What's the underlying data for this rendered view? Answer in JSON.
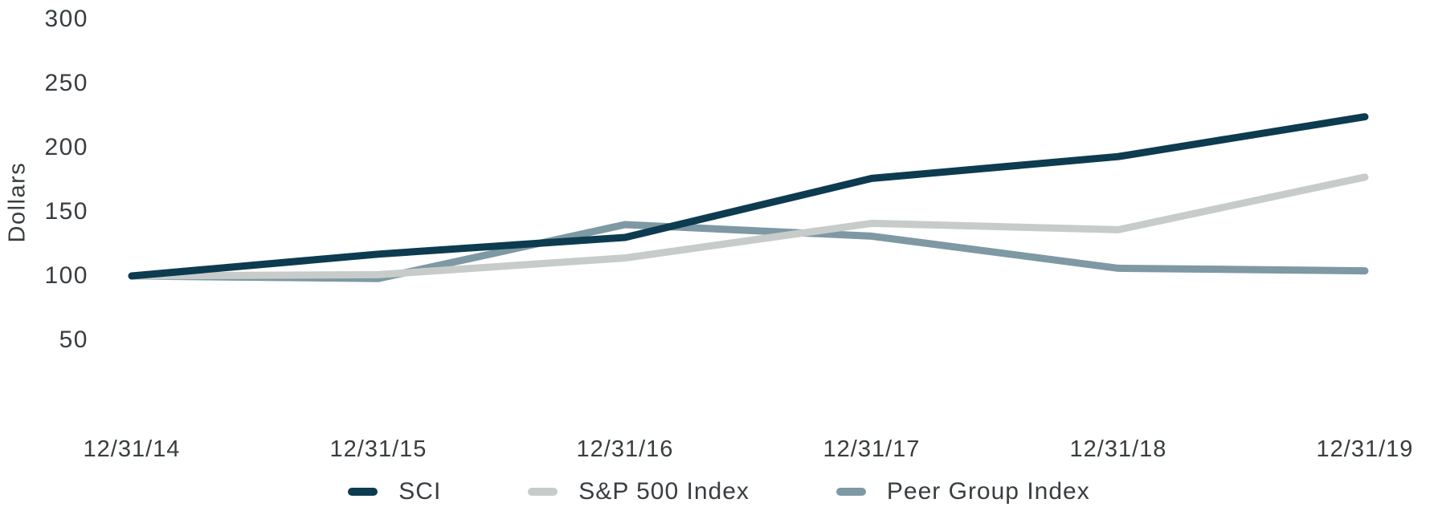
{
  "chart_data": {
    "type": "line",
    "title": "",
    "xlabel": "",
    "ylabel": "Dollars",
    "x_labels": [
      "12/31/14",
      "12/31/15",
      "12/31/16",
      "12/31/17",
      "12/31/18",
      "12/31/19"
    ],
    "y_ticks": [
      300,
      250,
      200,
      150,
      100,
      50
    ],
    "ylim": [
      50,
      300
    ],
    "grid": false,
    "legend_position": "bottom",
    "background_color": "#ffffff",
    "text_color": "#383d40",
    "series": [
      {
        "name": "SCI",
        "color": "#0d3b50",
        "values": [
          100,
          117,
          130,
          176,
          193,
          224
        ]
      },
      {
        "name": "S&P 500 Index",
        "color": "#c7cccb",
        "values": [
          100,
          101,
          114,
          141,
          136,
          177
        ]
      },
      {
        "name": "Peer Group Index",
        "color": "#7e99a3",
        "values": [
          100,
          98,
          140,
          131,
          106,
          104
        ]
      }
    ]
  }
}
